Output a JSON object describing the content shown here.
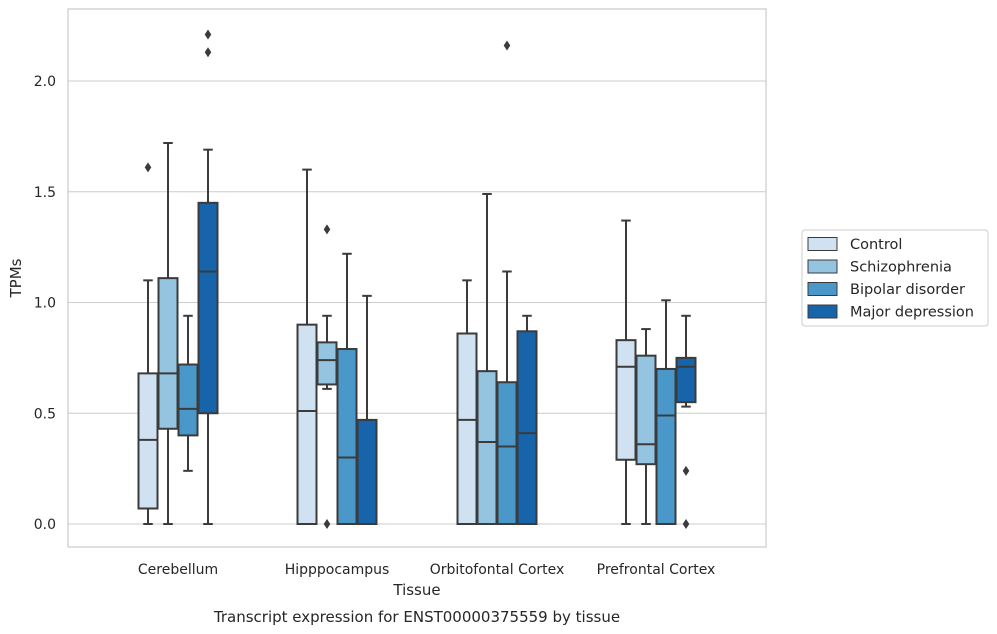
{
  "chart_data": {
    "type": "box",
    "xlabel": "Tissue",
    "ylabel": "TPMs",
    "caption": "Transcript expression for ENST00000375559 by tissue",
    "ylim": [
      -0.11,
      2.33
    ],
    "yticks": [
      "0.0",
      "0.5",
      "1.0",
      "1.5",
      "2.0"
    ],
    "ytick_values": [
      0,
      0.5,
      1.0,
      1.5,
      2.0
    ],
    "grid": "horizontal",
    "legend_placement": "right",
    "categories": [
      "Cerebellum",
      "Hipppocampus",
      "Orbitofontal Cortex",
      "Prefrontal Cortex"
    ],
    "series": [
      {
        "name": "Control",
        "color": "#d0e1f2",
        "boxes": [
          {
            "whislo": 0.0,
            "q1": 0.07,
            "med": 0.38,
            "q3": 0.68,
            "whishi": 1.1,
            "fliers": [
              1.61
            ]
          },
          {
            "whislo": 0.0,
            "q1": 0.0,
            "med": 0.51,
            "q3": 0.9,
            "whishi": 1.6,
            "fliers": []
          },
          {
            "whislo": 0.0,
            "q1": 0.0,
            "med": 0.47,
            "q3": 0.86,
            "whishi": 1.1,
            "fliers": []
          },
          {
            "whislo": 0.0,
            "q1": 0.29,
            "med": 0.71,
            "q3": 0.83,
            "whishi": 1.37,
            "fliers": []
          }
        ]
      },
      {
        "name": "Schizophrenia",
        "color": "#94c4df",
        "boxes": [
          {
            "whislo": 0.0,
            "q1": 0.43,
            "med": 0.68,
            "q3": 1.11,
            "whishi": 1.72,
            "fliers": []
          },
          {
            "whislo": 0.61,
            "q1": 0.63,
            "med": 0.74,
            "q3": 0.82,
            "whishi": 0.94,
            "fliers": [
              0.0,
              1.33
            ]
          },
          {
            "whislo": 0.0,
            "q1": 0.0,
            "med": 0.37,
            "q3": 0.69,
            "whishi": 1.49,
            "fliers": []
          },
          {
            "whislo": 0.0,
            "q1": 0.27,
            "med": 0.36,
            "q3": 0.76,
            "whishi": 0.88,
            "fliers": []
          }
        ]
      },
      {
        "name": "Bipolar disorder",
        "color": "#4a98c9",
        "boxes": [
          {
            "whislo": 0.24,
            "q1": 0.4,
            "med": 0.52,
            "q3": 0.72,
            "whishi": 0.94,
            "fliers": []
          },
          {
            "whislo": 0.0,
            "q1": 0.0,
            "med": 0.3,
            "q3": 0.79,
            "whishi": 1.22,
            "fliers": []
          },
          {
            "whislo": 0.0,
            "q1": 0.0,
            "med": 0.35,
            "q3": 0.64,
            "whishi": 1.14,
            "fliers": [
              2.16
            ]
          },
          {
            "whislo": 0.0,
            "q1": 0.0,
            "med": 0.49,
            "q3": 0.7,
            "whishi": 1.01,
            "fliers": []
          }
        ]
      },
      {
        "name": "Major depression",
        "color": "#1764ab",
        "boxes": [
          {
            "whislo": 0.0,
            "q1": 0.5,
            "med": 1.14,
            "q3": 1.45,
            "whishi": 1.69,
            "fliers": [
              2.13,
              2.21
            ]
          },
          {
            "whislo": 0.0,
            "q1": 0.0,
            "med": 0.0,
            "q3": 0.47,
            "whishi": 1.03,
            "fliers": []
          },
          {
            "whislo": 0.0,
            "q1": 0.0,
            "med": 0.41,
            "q3": 0.87,
            "whishi": 0.94,
            "fliers": []
          },
          {
            "whislo": 0.53,
            "q1": 0.55,
            "med": 0.71,
            "q3": 0.75,
            "whishi": 0.94,
            "fliers": [
              0.0,
              0.24
            ]
          }
        ]
      }
    ]
  }
}
